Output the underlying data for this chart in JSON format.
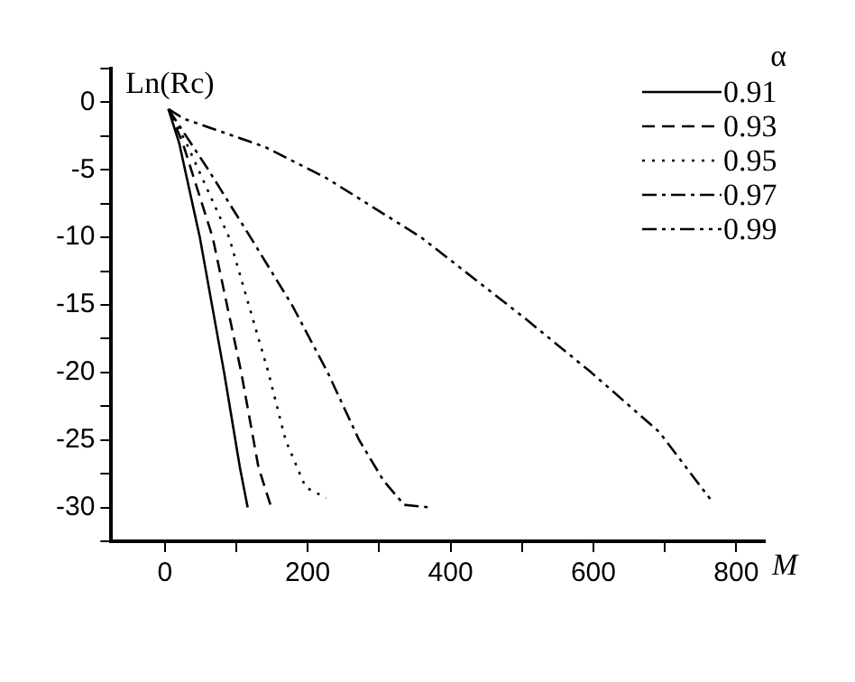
{
  "chart_data": {
    "type": "line",
    "xlabel": "M",
    "ylabel": "Ln(Rc)",
    "legend_title": "α",
    "legend": "top right",
    "marker": "none",
    "grid": false,
    "xlim": [
      -75,
      840
    ],
    "xticks": [
      0,
      {
        "value": 100,
        "label": null
      },
      200,
      {
        "value": 300,
        "label": null
      },
      400,
      {
        "value": 500,
        "label": null
      },
      600,
      {
        "value": 700,
        "label": null
      },
      800
    ],
    "ylim": [
      -32.5,
      2.5
    ],
    "yticks": [
      {
        "value": -32.5,
        "label": null
      },
      -30,
      {
        "value": -27.5,
        "label": null
      },
      -25,
      {
        "value": -22.5,
        "label": null
      },
      -20,
      {
        "value": -17.5,
        "label": null
      },
      -15,
      {
        "value": -12.5,
        "label": null
      },
      -10,
      {
        "value": -7.5,
        "label": null
      },
      -5,
      {
        "value": -2.5,
        "label": null
      },
      0,
      {
        "value": 2.5,
        "label": null
      }
    ],
    "series": [
      {
        "name": "0.91",
        "color": "#000000",
        "line_style": "solid",
        "x": [
          5,
          20,
          49,
          83,
          105,
          116
        ],
        "values": [
          -0.5,
          -3,
          -10,
          -20,
          -27,
          -30
        ]
      },
      {
        "name": "0.93",
        "color": "#000000",
        "line_style": "dashed",
        "x": [
          5,
          25,
          67,
          107,
          131,
          149
        ],
        "values": [
          -0.5,
          -3,
          -10,
          -20,
          -27,
          -30
        ]
      },
      {
        "name": "0.95",
        "color": "#000000",
        "line_style": "dotted",
        "x": [
          5,
          30,
          90,
          145,
          169,
          197,
          226
        ],
        "values": [
          -0.5,
          -3,
          -10,
          -20,
          -25,
          -28.5,
          -29.3
        ]
      },
      {
        "name": "0.97",
        "color": "#000000",
        "line_style": "dashdot",
        "x": [
          5,
          61,
          120,
          178,
          228,
          272,
          306,
          335,
          373
        ],
        "values": [
          -0.5,
          -5,
          -10,
          -15,
          -20,
          -25,
          -28,
          -29.8,
          -30
        ]
      },
      {
        "name": "0.99",
        "color": "#000000",
        "line_style": "dashdotdot",
        "x": [
          5,
          26,
          140,
          226,
          359,
          502,
          597,
          692,
          764
        ],
        "values": [
          -0.5,
          -1.2,
          -3.3,
          -5.6,
          -10,
          -15.9,
          -20,
          -24.4,
          -29.4
        ]
      }
    ]
  }
}
